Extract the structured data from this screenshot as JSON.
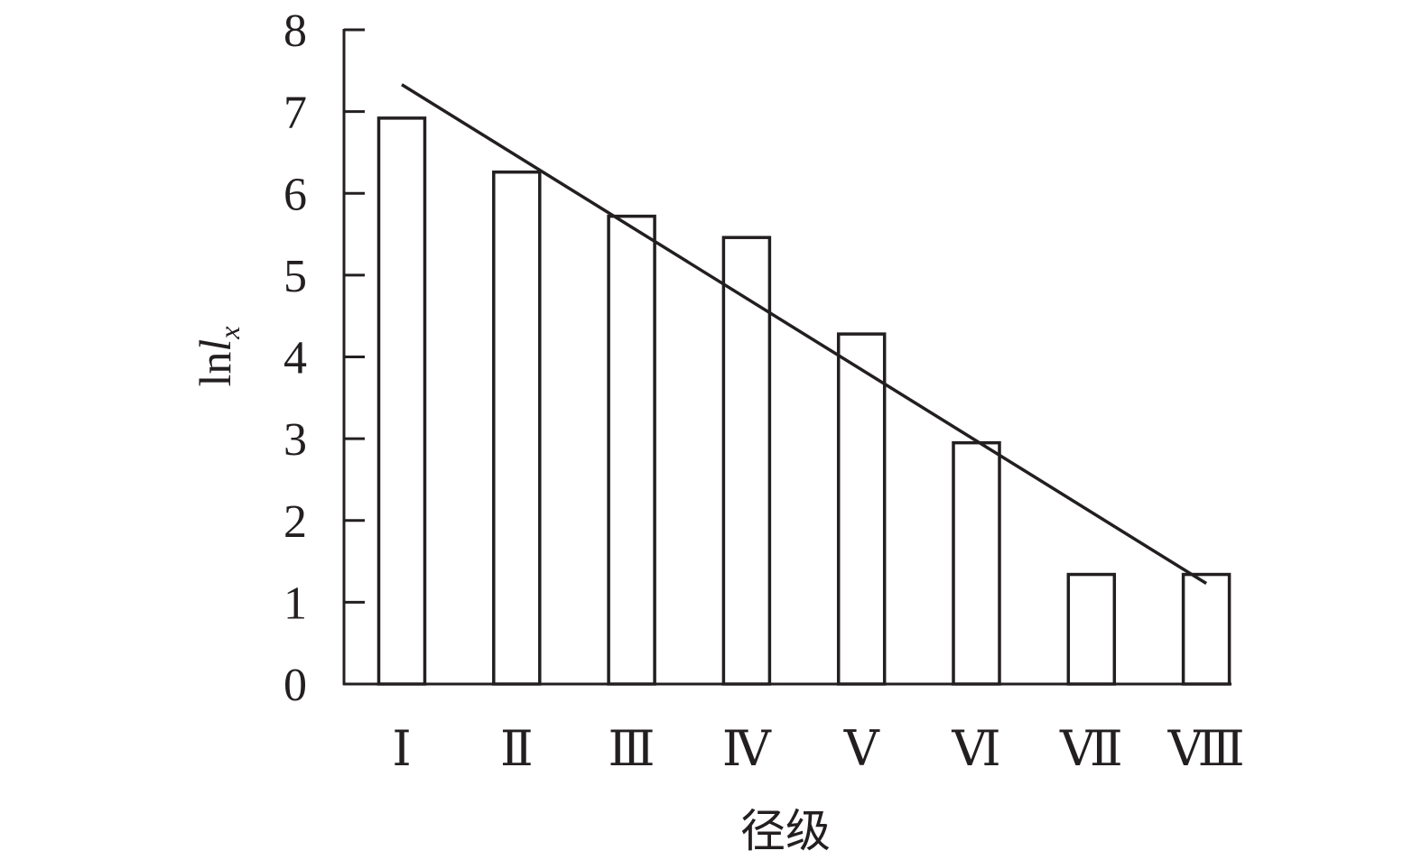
{
  "chart_data": {
    "type": "bar",
    "title": "",
    "xlabel": "径级",
    "ylabel_main": "ln",
    "ylabel_italic": "l",
    "ylabel_sub": "x",
    "categories": [
      "Ⅰ",
      "Ⅱ",
      "Ⅲ",
      "Ⅳ",
      "Ⅴ",
      "Ⅵ",
      "Ⅶ",
      "Ⅷ"
    ],
    "values": [
      6.92,
      6.26,
      5.72,
      5.46,
      4.28,
      2.95,
      1.34,
      1.34
    ],
    "trendline": {
      "start": 7.33,
      "end": 1.23
    },
    "ylim": [
      0,
      8
    ],
    "yticks": [
      "0",
      "1",
      "2",
      "3",
      "4",
      "5",
      "6",
      "7",
      "8"
    ],
    "grid": false,
    "colors": {
      "stroke": "#231f20",
      "fill": "#ffffff"
    }
  }
}
